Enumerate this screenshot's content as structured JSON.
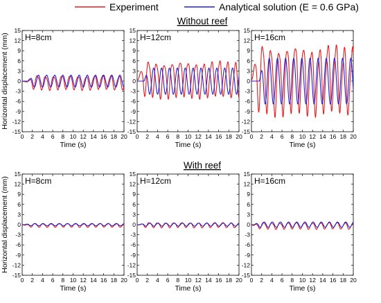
{
  "legend": {
    "experiment": "Experiment",
    "analytical": "Analytical solution (E = 0.6 GPa)"
  },
  "colors": {
    "experiment": "#e8191c",
    "analytical": "#1f1fd6"
  },
  "sections": {
    "without_reef": "Without reef",
    "with_reef": "With reef"
  },
  "chart_data": [
    {
      "type": "line",
      "group": "Without reef",
      "label": "H=8cm",
      "xlabel": "Time (s)",
      "ylabel": "Horizontal displacement (mm)",
      "xlim": [
        0,
        20
      ],
      "ylim": [
        -15,
        15
      ],
      "xticks": [
        0,
        2,
        4,
        6,
        8,
        10,
        12,
        14,
        16,
        18,
        20
      ],
      "yticks": [
        -15,
        -12,
        -9,
        -6,
        -3,
        0,
        3,
        6,
        9,
        12,
        15
      ],
      "series": [
        {
          "name": "Experiment",
          "amplitude": 2.0,
          "offset": -0.3,
          "period": 1.6,
          "start": 1.0
        },
        {
          "name": "Analytical solution (E = 0.6 GPa)",
          "amplitude": 1.8,
          "offset": 0,
          "period": 1.6,
          "start": 1.2
        }
      ]
    },
    {
      "type": "line",
      "group": "Without reef",
      "label": "H=12cm",
      "xlabel": "Time (s)",
      "ylabel": "",
      "xlim": [
        0,
        20
      ],
      "ylim": [
        -15,
        15
      ],
      "xticks": [
        0,
        2,
        4,
        6,
        8,
        10,
        12,
        14,
        16,
        18,
        20
      ],
      "yticks": [
        -15,
        -12,
        -9,
        -6,
        -3,
        0,
        3,
        6,
        9,
        12,
        15
      ],
      "series": [
        {
          "name": "Experiment",
          "amplitude": 5.0,
          "offset": 0.8,
          "period": 1.55,
          "start": 0.3
        },
        {
          "name": "Analytical solution (E = 0.6 GPa)",
          "amplitude": 3.9,
          "offset": 0,
          "period": 1.55,
          "start": 1.3
        }
      ]
    },
    {
      "type": "line",
      "group": "Without reef",
      "label": "H=16cm",
      "xlabel": "Time (s)",
      "ylabel": "",
      "xlim": [
        0,
        20
      ],
      "ylim": [
        -15,
        15
      ],
      "xticks": [
        0,
        2,
        4,
        6,
        8,
        10,
        12,
        14,
        16,
        18,
        20
      ],
      "yticks": [
        -15,
        -12,
        -9,
        -6,
        -3,
        0,
        3,
        6,
        9,
        12,
        15
      ],
      "series": [
        {
          "name": "Experiment",
          "amplitude": 9.5,
          "offset": 1.0,
          "period": 1.6,
          "start": 0.2
        },
        {
          "name": "Analytical solution (E = 0.6 GPa)",
          "amplitude": 6.8,
          "offset": 0,
          "period": 1.6,
          "start": 1.5
        }
      ]
    },
    {
      "type": "line",
      "group": "With reef",
      "label": "H=8cm",
      "xlabel": "Time (s)",
      "ylabel": "Horizontal displacement (mm)",
      "xlim": [
        0,
        20
      ],
      "ylim": [
        -15,
        15
      ],
      "xticks": [
        0,
        2,
        4,
        6,
        8,
        10,
        12,
        14,
        16,
        18,
        20
      ],
      "yticks": [
        -15,
        -12,
        -9,
        -6,
        -3,
        0,
        3,
        6,
        9,
        12,
        15
      ],
      "series": [
        {
          "name": "Experiment",
          "amplitude": 0.5,
          "offset": -0.2,
          "period": 1.6,
          "start": 0.5
        },
        {
          "name": "Analytical solution (E = 0.6 GPa)",
          "amplitude": 0.35,
          "offset": 0,
          "period": 1.6,
          "start": 0.5
        }
      ]
    },
    {
      "type": "line",
      "group": "With reef",
      "label": "H=12cm",
      "xlabel": "Time (s)",
      "ylabel": "",
      "xlim": [
        0,
        20
      ],
      "ylim": [
        -15,
        15
      ],
      "xticks": [
        0,
        2,
        4,
        6,
        8,
        10,
        12,
        14,
        16,
        18,
        20
      ],
      "yticks": [
        -15,
        -12,
        -9,
        -6,
        -3,
        0,
        3,
        6,
        9,
        12,
        15
      ],
      "series": [
        {
          "name": "Experiment",
          "amplitude": 0.7,
          "offset": -0.1,
          "period": 1.6,
          "start": 0.4
        },
        {
          "name": "Analytical solution (E = 0.6 GPa)",
          "amplitude": 0.45,
          "offset": 0,
          "period": 1.6,
          "start": 0.5
        }
      ]
    },
    {
      "type": "line",
      "group": "With reef",
      "label": "H=16cm",
      "xlabel": "Time (s)",
      "ylabel": "",
      "xlim": [
        0,
        20
      ],
      "ylim": [
        -15,
        15
      ],
      "xticks": [
        0,
        2,
        4,
        6,
        8,
        10,
        12,
        14,
        16,
        18,
        20
      ],
      "yticks": [
        -15,
        -12,
        -9,
        -6,
        -3,
        0,
        3,
        6,
        9,
        12,
        15
      ],
      "series": [
        {
          "name": "Experiment",
          "amplitude": 0.9,
          "offset": -0.3,
          "period": 1.6,
          "start": 0.4
        },
        {
          "name": "Analytical solution (E = 0.6 GPa)",
          "amplitude": 0.8,
          "offset": 0,
          "period": 1.6,
          "start": 0.5
        }
      ]
    }
  ]
}
